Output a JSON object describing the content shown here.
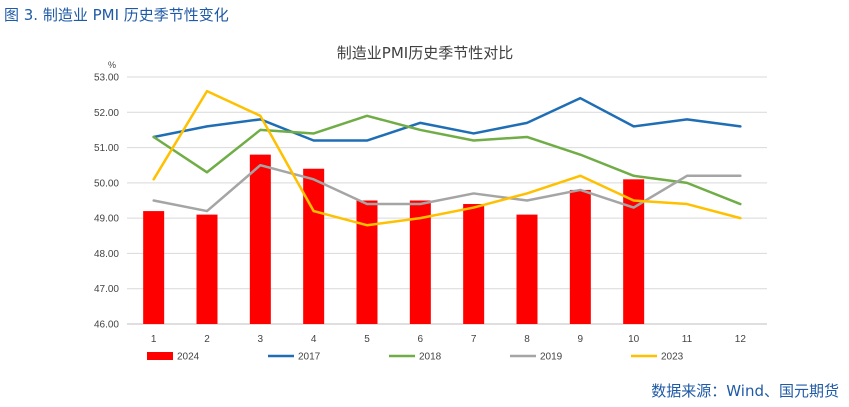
{
  "figure_caption": "图 3.  制造业 PMI 历史季节性变化",
  "source_note": "数据来源：Wind、国元期货",
  "colors": {
    "2024": "#ff0000",
    "2017": "#1f6eb5",
    "2018": "#70ad47",
    "2019": "#a5a5a5",
    "2023": "#ffc000",
    "caption": "#1f5aa6"
  },
  "chart_data": {
    "type": "bar",
    "title": "制造业PMI历史季节性对比",
    "unit_label": "%",
    "categories": [
      "1",
      "2",
      "3",
      "4",
      "5",
      "6",
      "7",
      "8",
      "9",
      "10",
      "11",
      "12"
    ],
    "ylim": [
      46,
      53
    ],
    "yticks": [
      "46.00",
      "47.00",
      "48.00",
      "49.00",
      "50.00",
      "51.00",
      "52.00",
      "53.00"
    ],
    "grid": true,
    "legend_position": "bottom",
    "bar_series": {
      "name": "2024",
      "values": [
        49.2,
        49.1,
        50.8,
        50.4,
        49.5,
        49.5,
        49.4,
        49.1,
        49.8,
        50.1,
        null,
        null
      ]
    },
    "line_series": [
      {
        "name": "2017",
        "values": [
          51.3,
          51.6,
          51.8,
          51.2,
          51.2,
          51.7,
          51.4,
          51.7,
          52.4,
          51.6,
          51.8,
          51.6
        ]
      },
      {
        "name": "2018",
        "values": [
          51.3,
          50.3,
          51.5,
          51.4,
          51.9,
          51.5,
          51.2,
          51.3,
          50.8,
          50.2,
          50.0,
          49.4
        ]
      },
      {
        "name": "2019",
        "values": [
          49.5,
          49.2,
          50.5,
          50.1,
          49.4,
          49.4,
          49.7,
          49.5,
          49.8,
          49.3,
          50.2,
          50.2
        ]
      },
      {
        "name": "2023",
        "values": [
          50.1,
          52.6,
          51.9,
          49.2,
          48.8,
          49.0,
          49.3,
          49.7,
          50.2,
          49.5,
          49.4,
          49.0
        ]
      }
    ]
  }
}
